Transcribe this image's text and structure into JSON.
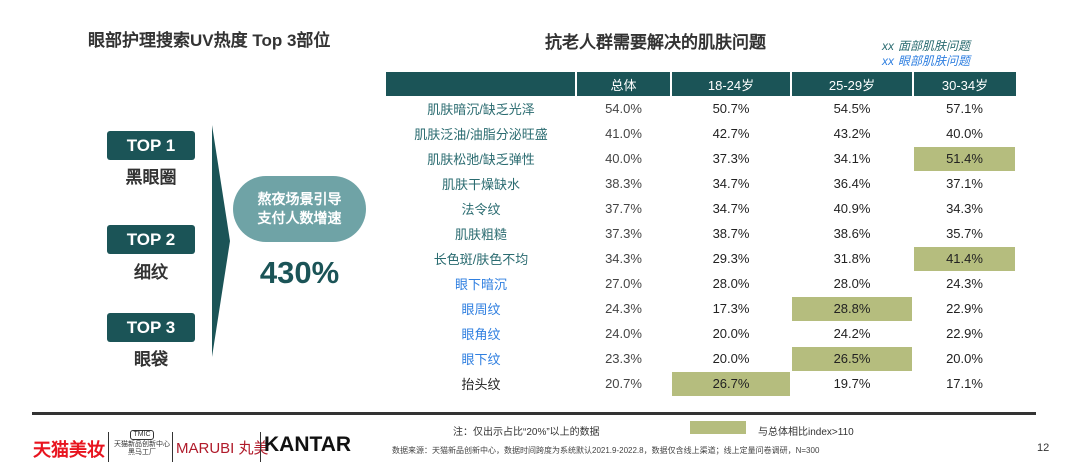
{
  "left_panel": {
    "title": "眼部护理搜索UV热度 Top 3部位",
    "tops": [
      {
        "badge": "TOP 1",
        "label": "黑眼圈"
      },
      {
        "badge": "TOP 2",
        "label": "细纹"
      },
      {
        "badge": "TOP 3",
        "label": "眼袋"
      }
    ],
    "pill_line1": "熬夜场景引导",
    "pill_line2": "支付人数增速",
    "growth": "430%"
  },
  "table": {
    "title": "抗老人群需要解决的肌肤问题",
    "legend": [
      {
        "marker": "xx",
        "label": "面部肌肤问题",
        "color": "#2a6b70"
      },
      {
        "marker": "xx",
        "label": "眼部肌肤问题",
        "color": "#2f7fe0"
      }
    ],
    "headers": [
      "",
      "总体",
      "18-24岁",
      "25-29岁",
      "30-34岁"
    ],
    "highlight_color": "#b5bd7e",
    "rows": [
      {
        "label": "肌肤暗沉/缺乏光泽",
        "type": "face",
        "values": [
          "54.0%",
          "50.7%",
          "54.5%",
          "57.1%"
        ],
        "hl": [
          false,
          false,
          false,
          false
        ]
      },
      {
        "label": "肌肤泛油/油脂分泌旺盛",
        "type": "face",
        "values": [
          "41.0%",
          "42.7%",
          "43.2%",
          "40.0%"
        ],
        "hl": [
          false,
          false,
          false,
          false
        ]
      },
      {
        "label": "肌肤松弛/缺乏弹性",
        "type": "face",
        "values": [
          "40.0%",
          "37.3%",
          "34.1%",
          "51.4%"
        ],
        "hl": [
          false,
          false,
          false,
          true
        ]
      },
      {
        "label": "肌肤干燥缺水",
        "type": "face",
        "values": [
          "38.3%",
          "34.7%",
          "36.4%",
          "37.1%"
        ],
        "hl": [
          false,
          false,
          false,
          false
        ]
      },
      {
        "label": "法令纹",
        "type": "face",
        "values": [
          "37.7%",
          "34.7%",
          "40.9%",
          "34.3%"
        ],
        "hl": [
          false,
          false,
          false,
          false
        ]
      },
      {
        "label": "肌肤粗糙",
        "type": "face",
        "values": [
          "37.3%",
          "38.7%",
          "38.6%",
          "35.7%"
        ],
        "hl": [
          false,
          false,
          false,
          false
        ]
      },
      {
        "label": "长色斑/肤色不均",
        "type": "face",
        "values": [
          "34.3%",
          "29.3%",
          "31.8%",
          "41.4%"
        ],
        "hl": [
          false,
          false,
          false,
          true
        ]
      },
      {
        "label": "眼下暗沉",
        "type": "eye",
        "values": [
          "27.0%",
          "28.0%",
          "28.0%",
          "24.3%"
        ],
        "hl": [
          false,
          false,
          false,
          false
        ]
      },
      {
        "label": "眼周纹",
        "type": "eye",
        "values": [
          "24.3%",
          "17.3%",
          "28.8%",
          "22.9%"
        ],
        "hl": [
          false,
          false,
          true,
          false
        ]
      },
      {
        "label": "眼角纹",
        "type": "eye",
        "values": [
          "24.0%",
          "20.0%",
          "24.2%",
          "22.9%"
        ],
        "hl": [
          false,
          false,
          false,
          false
        ]
      },
      {
        "label": "眼下纹",
        "type": "eye",
        "values": [
          "23.3%",
          "20.0%",
          "26.5%",
          "20.0%"
        ],
        "hl": [
          false,
          false,
          true,
          false
        ]
      },
      {
        "label": "抬头纹",
        "type": "plain",
        "values": [
          "20.7%",
          "26.7%",
          "19.7%",
          "17.1%"
        ],
        "hl": [
          false,
          true,
          false,
          false
        ]
      }
    ]
  },
  "footer": {
    "note": "注：仅出示占比“20%”以上的数据",
    "swatch_label": "与总体相比index>110",
    "source": "数据来源：天猫新品创新中心，数据时间跨度为系统默认2021.9-2022.8，数据仅含线上渠道；线上定量问卷调研，N=300",
    "page_number": "12",
    "logos": {
      "tmall": "天猫美妆",
      "tmic_badge": "TMIC",
      "tmic_text": "天猫新品创新中心 黑马工厂",
      "marubi": "MARUBI 丸美",
      "kantar": "KANTAR"
    }
  }
}
